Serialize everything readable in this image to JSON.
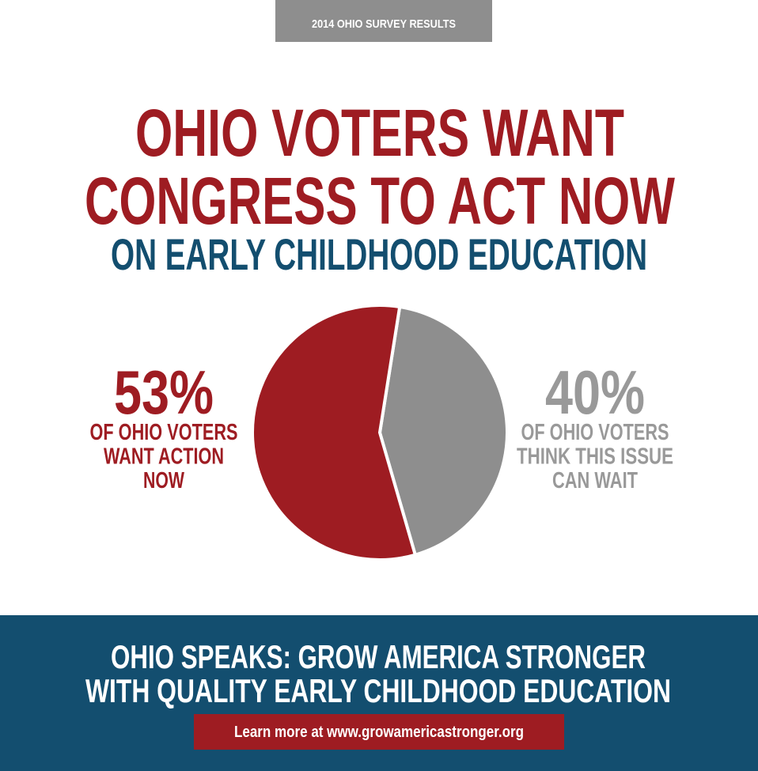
{
  "header": {
    "badge": "2014 OHIO SURVEY RESULTS"
  },
  "chart_data": {
    "type": "pie",
    "title_lines": [
      "OHIO VOTERS WANT",
      "CONGRESS TO ACT NOW"
    ],
    "subtitle": "ON EARLY CHILDHOOD EDUCATION",
    "categories": [
      [
        "OF OHIO VOTERS",
        "WANT ACTION",
        "NOW"
      ],
      [
        "OF OHIO VOTERS",
        "THINK THIS ISSUE",
        "CAN WAIT"
      ]
    ],
    "values": [
      53,
      40
    ],
    "value_labels": [
      "53%",
      "40%"
    ],
    "colors": [
      "#9e1c22",
      "#8e8e8e"
    ]
  },
  "footer": {
    "lines": [
      "OHIO SPEAKS: GROW AMERICA STRONGER",
      "WITH QUALITY EARLY CHILDHOOD EDUCATION"
    ],
    "link": "Learn more at www.growamericastronger.org"
  }
}
